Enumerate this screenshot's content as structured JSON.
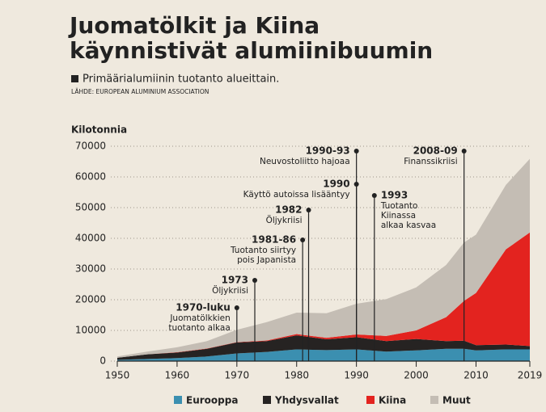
{
  "chart_data": {
    "type": "stacked-area",
    "title": [
      "Juomatölkit ja Kiina",
      "käynnistivät alumiinibuumin"
    ],
    "subtitle": "Primäärialumiinin tuotanto alueittain.",
    "source": "LÄHDE: EUROPEAN ALUMINIUM ASSOCIATION",
    "y_label": "Kilotonnia",
    "x": [
      1950,
      1955,
      1960,
      1965,
      1970,
      1975,
      1980,
      1985,
      1990,
      1995,
      2000,
      2005,
      2008,
      2010,
      2015,
      2019
    ],
    "series": [
      {
        "name": "Eurooppa",
        "color": "#3b8fb0",
        "values": [
          400,
          700,
          1000,
          1500,
          2500,
          3000,
          3800,
          3600,
          3800,
          3100,
          3500,
          4000,
          4000,
          3500,
          3800,
          3800
        ]
      },
      {
        "name": "Yhdysvallat",
        "color": "#262322",
        "values": [
          700,
          1500,
          1800,
          2500,
          3600,
          3500,
          4600,
          3500,
          4000,
          3400,
          3700,
          2500,
          2650,
          1700,
          1600,
          1100
        ]
      },
      {
        "name": "Kiina",
        "color": "#e3231f",
        "values": [
          0,
          0,
          100,
          100,
          100,
          200,
          400,
          500,
          900,
          1700,
          2800,
          7800,
          13000,
          17000,
          31000,
          37000
        ]
      },
      {
        "name": "Muut",
        "color": "#c4bdb4",
        "values": [
          400,
          900,
          1600,
          2400,
          4000,
          6000,
          7000,
          8000,
          10000,
          12000,
          14000,
          17000,
          19000,
          19000,
          21000,
          24000
        ]
      }
    ],
    "xlim": [
      1950,
      2019
    ],
    "xticks": [
      1950,
      1960,
      1970,
      1980,
      1990,
      2000,
      2010,
      2019
    ],
    "ylim": [
      0,
      70000
    ],
    "yticks": [
      0,
      10000,
      20000,
      30000,
      40000,
      50000,
      60000,
      70000
    ],
    "grid": true,
    "annotations": [
      {
        "x": 1970,
        "label": "1970-luku",
        "text": [
          "Juomatölkkien",
          "tuotanto alkaa"
        ]
      },
      {
        "x": 1973,
        "label": "1973",
        "text": [
          "Öljykriisi"
        ]
      },
      {
        "x": 1981,
        "label": "1981-86",
        "text": [
          "Tuotanto siirtyy",
          "pois Japanista"
        ]
      },
      {
        "x": 1982,
        "label": "1982",
        "text": [
          "Öljykriisi"
        ]
      },
      {
        "x": 1990,
        "label": "1990",
        "text": [
          "Käyttö autoissa lisääntyy"
        ]
      },
      {
        "x": 1990,
        "label": "1990-93",
        "text": [
          "Neuvostoliitto hajoaa"
        ]
      },
      {
        "x": 1993,
        "label": "1993",
        "text": [
          "Tuotanto",
          "Kiinassa",
          "alkaa kasvaa"
        ]
      },
      {
        "x": 2008,
        "label": "2008-09",
        "text": [
          "Finanssikriisi"
        ]
      }
    ]
  }
}
